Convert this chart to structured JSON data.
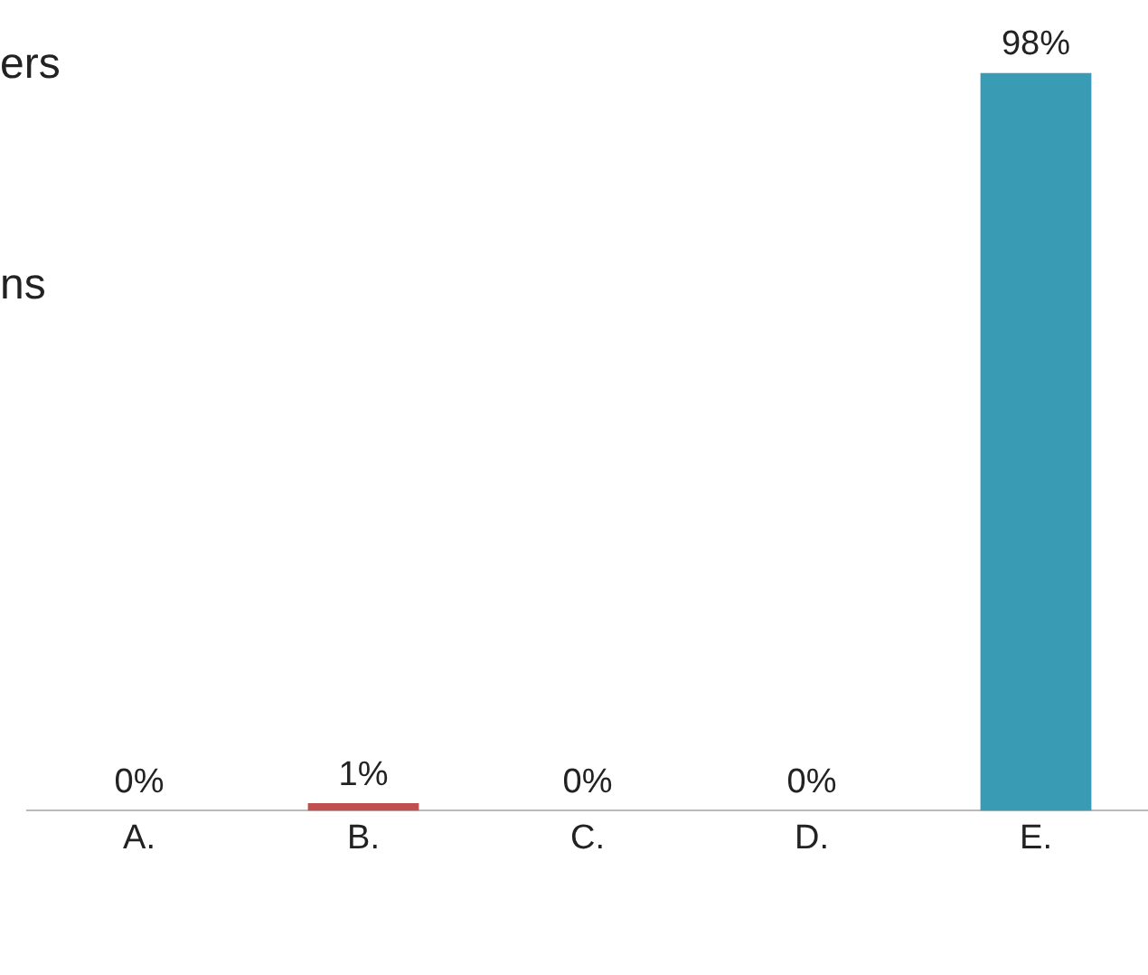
{
  "chart_data": {
    "type": "bar",
    "categories": [
      "A.",
      "B.",
      "C.",
      "D.",
      "E."
    ],
    "values": [
      0,
      1,
      0,
      0,
      98
    ],
    "colors": [
      "#4f81bd",
      "#c0504d",
      "#9bbb59",
      "#8064a2",
      "#3a9bb5"
    ],
    "value_labels": [
      "0%",
      "1%",
      "0%",
      "0%",
      "98%"
    ],
    "tick_labels": "x",
    "grid": false,
    "legend": false,
    "annotations": [
      "ers",
      "ns"
    ]
  }
}
